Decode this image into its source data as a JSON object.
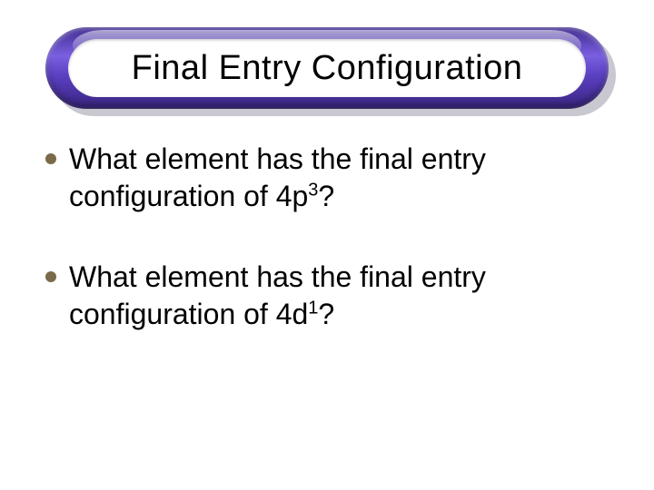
{
  "slide": {
    "title": "Final Entry Configuration",
    "bullets": [
      {
        "line1": "What element has the final entry",
        "config_prefix": "configuration of 4p",
        "config_sup": "3",
        "config_suffix": "?"
      },
      {
        "line1": "What element has the final entry",
        "config_prefix": "configuration of 4d",
        "config_sup": "1",
        "config_suffix": "?"
      }
    ]
  },
  "style": {
    "background_color": "#ffffff",
    "title_fontsize": 38,
    "body_fontsize": 32,
    "bullet_color": "#7a6a4a",
    "banner_gradient_top": "#3f2a8f",
    "banner_gradient_mid": "#7a5fe0",
    "banner_gradient_bottom": "#3a2580",
    "banner_shadow_color": "#c8c8d0",
    "text_color": "#000000"
  }
}
